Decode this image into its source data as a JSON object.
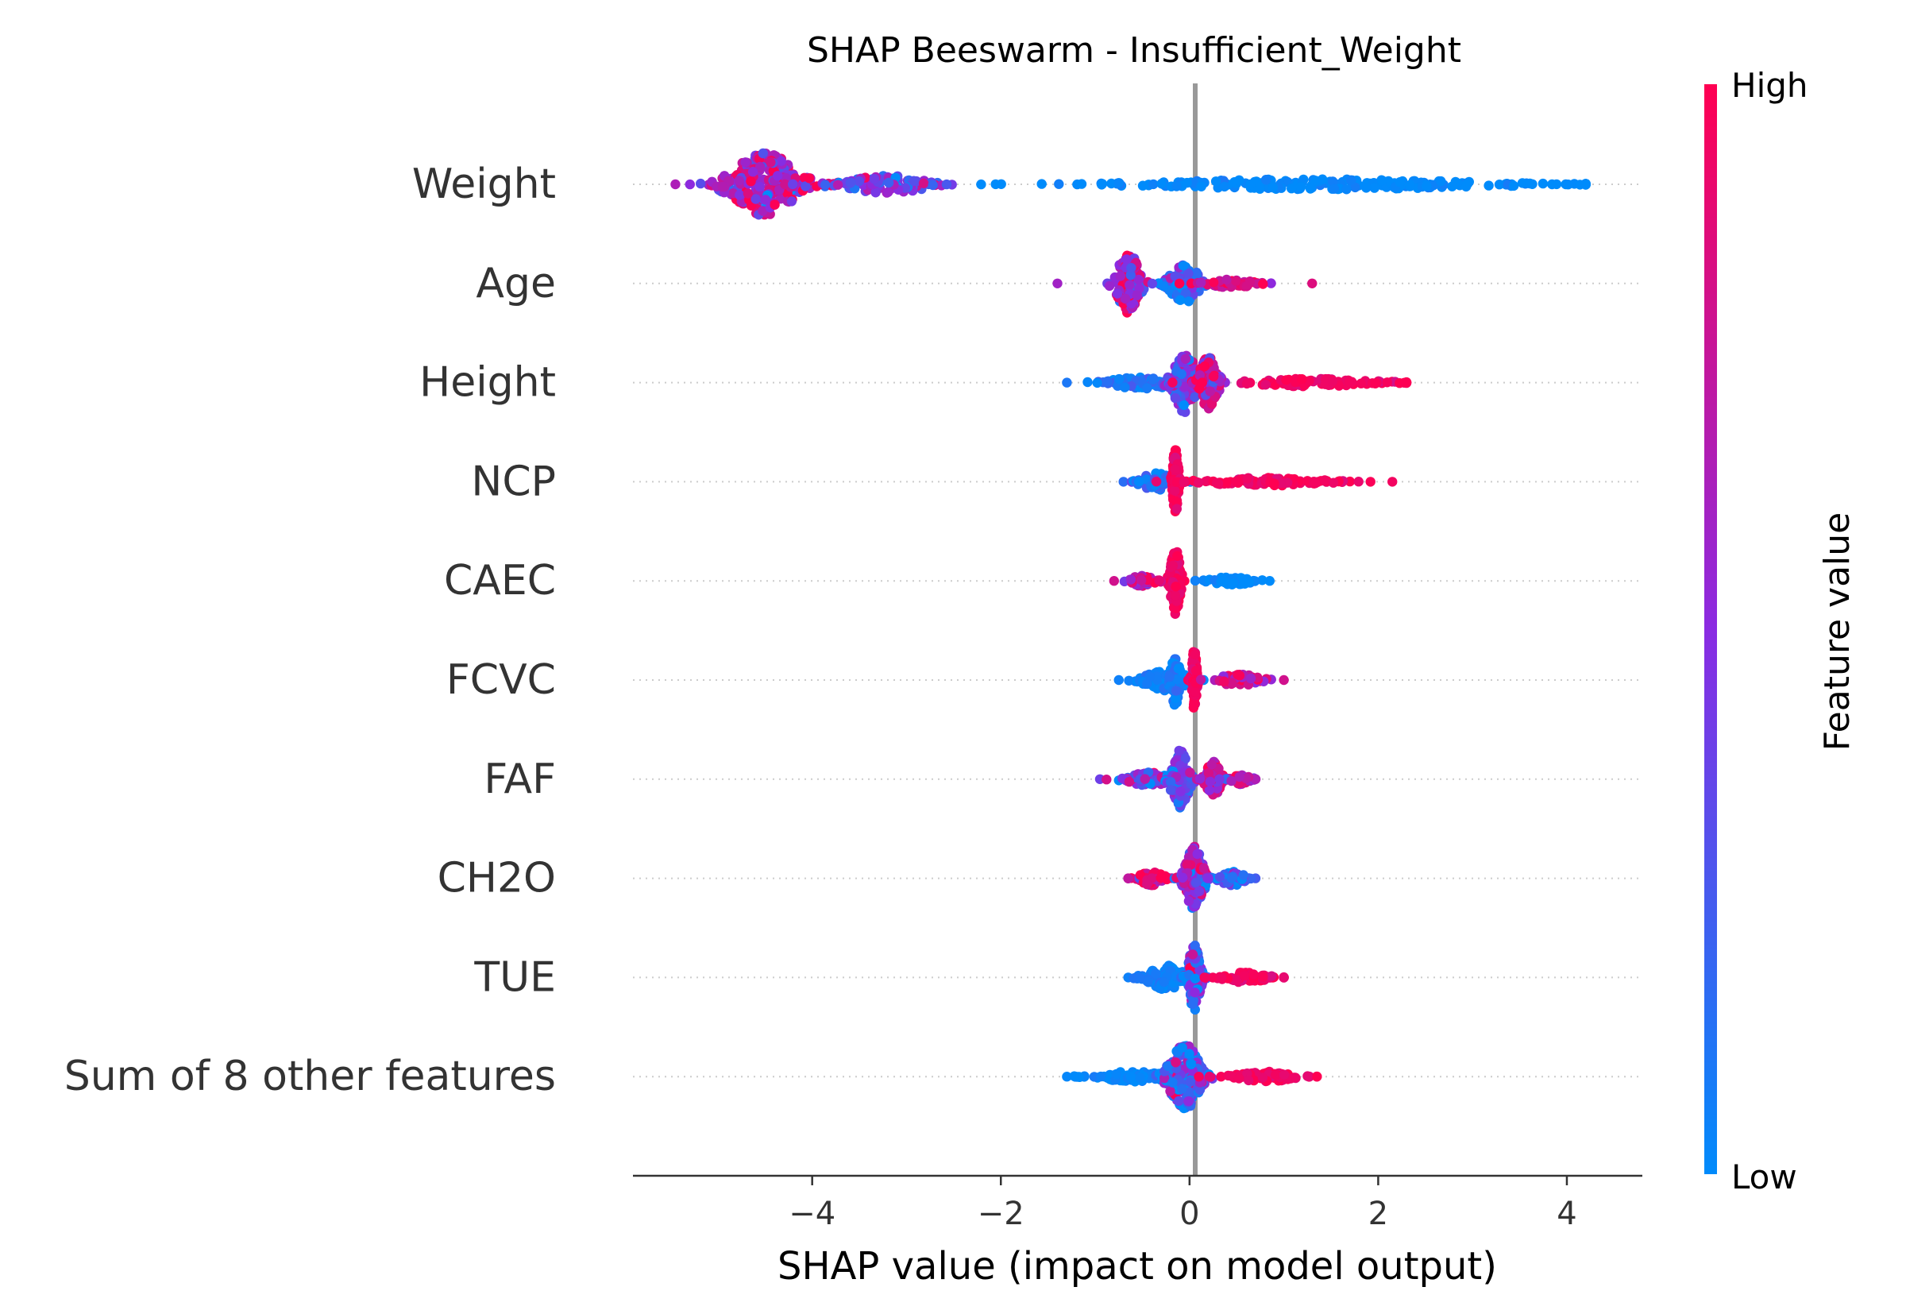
{
  "chart_data": {
    "type": "scatter",
    "subtype": "shap-beeswarm",
    "title": "SHAP Beeswarm - Insufficient_Weight",
    "xlabel": "SHAP value (impact on model output)",
    "xlim": [
      -5.9,
      4.8
    ],
    "xticks": [
      -4,
      -2,
      0,
      2,
      4
    ],
    "xtick_labels": [
      "−4",
      "−2",
      "0",
      "2",
      "4"
    ],
    "grid": false,
    "colorbar": {
      "label": "Feature value",
      "high_label": "High",
      "low_label": "Low",
      "low_color": "#008bfb",
      "mid_color": "#8a2be2",
      "high_color": "#ff0052"
    },
    "features": [
      {
        "name": "Weight",
        "min": -5.45,
        "max": 4.2,
        "clusters": [
          {
            "center": -4.5,
            "spread": 0.55,
            "count": 260,
            "height": 0.9,
            "color_mean": 0.65,
            "color_sd": 0.25
          },
          {
            "center": -3.2,
            "spread": 0.7,
            "count": 90,
            "height": 0.25,
            "color_mean": 0.4,
            "color_sd": 0.2
          },
          {
            "center": 1.4,
            "spread": 2.7,
            "count": 220,
            "height": 0.15,
            "color_mean": 0.0,
            "color_sd": 0.04
          }
        ]
      },
      {
        "name": "Age",
        "min": -1.4,
        "max": 1.3,
        "clusters": [
          {
            "center": -0.65,
            "spread": 0.18,
            "count": 110,
            "height": 0.95,
            "color_mean": 0.6,
            "color_sd": 0.2
          },
          {
            "center": -0.05,
            "spread": 0.25,
            "count": 110,
            "height": 0.55,
            "color_mean": 0.2,
            "color_sd": 0.2
          },
          {
            "center": 0.45,
            "spread": 0.4,
            "count": 50,
            "height": 0.12,
            "color_mean": 0.85,
            "color_sd": 0.15
          }
        ]
      },
      {
        "name": "Height",
        "min": -1.3,
        "max": 2.3,
        "clusters": [
          {
            "center": -0.5,
            "spread": 0.55,
            "count": 80,
            "height": 0.18,
            "color_mean": 0.1,
            "color_sd": 0.1
          },
          {
            "center": -0.05,
            "spread": 0.2,
            "count": 110,
            "height": 0.85,
            "color_mean": 0.35,
            "color_sd": 0.2
          },
          {
            "center": 0.2,
            "spread": 0.15,
            "count": 90,
            "height": 0.75,
            "color_mean": 0.75,
            "color_sd": 0.2
          },
          {
            "center": 1.3,
            "spread": 1.0,
            "count": 90,
            "height": 0.12,
            "color_mean": 0.95,
            "color_sd": 0.05
          }
        ]
      },
      {
        "name": "NCP",
        "min": -0.7,
        "max": 2.15,
        "clusters": [
          {
            "center": -0.35,
            "spread": 0.25,
            "count": 60,
            "height": 0.25,
            "color_mean": 0.15,
            "color_sd": 0.1
          },
          {
            "center": -0.15,
            "spread": 0.05,
            "count": 90,
            "height": 0.95,
            "color_mean": 0.95,
            "color_sd": 0.05
          },
          {
            "center": 0.8,
            "spread": 0.9,
            "count": 100,
            "height": 0.12,
            "color_mean": 0.95,
            "color_sd": 0.05
          }
        ]
      },
      {
        "name": "CAEC",
        "min": -0.8,
        "max": 0.85,
        "clusters": [
          {
            "center": -0.15,
            "spread": 0.08,
            "count": 130,
            "height": 0.95,
            "color_mean": 0.95,
            "color_sd": 0.05
          },
          {
            "center": -0.5,
            "spread": 0.2,
            "count": 40,
            "height": 0.15,
            "color_mean": 0.8,
            "color_sd": 0.2
          },
          {
            "center": 0.45,
            "spread": 0.35,
            "count": 50,
            "height": 0.12,
            "color_mean": 0.0,
            "color_sd": 0.05
          }
        ]
      },
      {
        "name": "FCVC",
        "min": -0.75,
        "max": 1.0,
        "clusters": [
          {
            "center": -0.25,
            "spread": 0.35,
            "count": 90,
            "height": 0.3,
            "color_mean": 0.05,
            "color_sd": 0.05
          },
          {
            "center": -0.15,
            "spread": 0.08,
            "count": 60,
            "height": 0.75,
            "color_mean": 0.1,
            "color_sd": 0.08
          },
          {
            "center": 0.05,
            "spread": 0.04,
            "count": 80,
            "height": 0.95,
            "color_mean": 0.95,
            "color_sd": 0.05
          },
          {
            "center": 0.5,
            "spread": 0.35,
            "count": 50,
            "height": 0.18,
            "color_mean": 0.8,
            "color_sd": 0.2
          }
        ]
      },
      {
        "name": "FAF",
        "min": -0.95,
        "max": 0.7,
        "clusters": [
          {
            "center": -0.45,
            "spread": 0.35,
            "count": 60,
            "height": 0.2,
            "color_mean": 0.4,
            "color_sd": 0.25
          },
          {
            "center": -0.1,
            "spread": 0.15,
            "count": 110,
            "height": 0.85,
            "color_mean": 0.3,
            "color_sd": 0.2
          },
          {
            "center": 0.25,
            "spread": 0.12,
            "count": 80,
            "height": 0.55,
            "color_mean": 0.75,
            "color_sd": 0.2
          },
          {
            "center": 0.55,
            "spread": 0.15,
            "count": 30,
            "height": 0.15,
            "color_mean": 0.7,
            "color_sd": 0.2
          }
        ]
      },
      {
        "name": "CH2O",
        "min": -0.65,
        "max": 0.7,
        "clusters": [
          {
            "center": -0.4,
            "spread": 0.2,
            "count": 50,
            "height": 0.2,
            "color_mean": 0.8,
            "color_sd": 0.2
          },
          {
            "center": 0.05,
            "spread": 0.15,
            "count": 130,
            "height": 0.95,
            "color_mean": 0.55,
            "color_sd": 0.25
          },
          {
            "center": 0.45,
            "spread": 0.2,
            "count": 50,
            "height": 0.22,
            "color_mean": 0.25,
            "color_sd": 0.2
          }
        ]
      },
      {
        "name": "TUE",
        "min": -0.65,
        "max": 1.0,
        "clusters": [
          {
            "center": -0.25,
            "spread": 0.3,
            "count": 80,
            "height": 0.35,
            "color_mean": 0.05,
            "color_sd": 0.05
          },
          {
            "center": 0.05,
            "spread": 0.1,
            "count": 120,
            "height": 0.95,
            "color_mean": 0.35,
            "color_sd": 0.25
          },
          {
            "center": 0.6,
            "spread": 0.35,
            "count": 70,
            "height": 0.15,
            "color_mean": 0.95,
            "color_sd": 0.05
          }
        ]
      },
      {
        "name": "Sum of 8 other features",
        "min": -1.3,
        "max": 1.35,
        "clusters": [
          {
            "center": -0.6,
            "spread": 0.55,
            "count": 80,
            "height": 0.15,
            "color_mean": 0.02,
            "color_sd": 0.04
          },
          {
            "center": -0.05,
            "spread": 0.25,
            "count": 180,
            "height": 0.95,
            "color_mean": 0.3,
            "color_sd": 0.3
          },
          {
            "center": 0.8,
            "spread": 0.45,
            "count": 80,
            "height": 0.15,
            "color_mean": 0.95,
            "color_sd": 0.05
          }
        ]
      }
    ]
  }
}
